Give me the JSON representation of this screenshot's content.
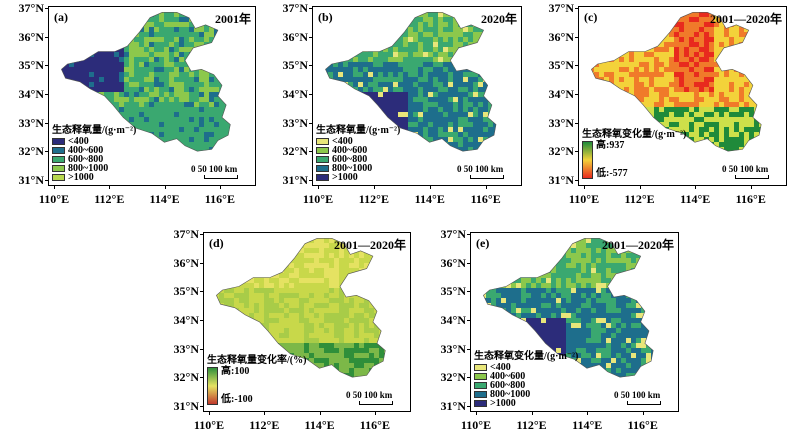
{
  "lat_labels": [
    "37°N",
    "36°N",
    "35°N",
    "34°N",
    "33°N",
    "32°N",
    "31°N"
  ],
  "lon_labels": [
    "110°E",
    "112°E",
    "114°E",
    "116°E"
  ],
  "scale_text": "0 50 100 km",
  "panels": {
    "a": {
      "tag": "(a)",
      "title": "2001年",
      "legend_title": "生态释氧量/(g·m⁻²)",
      "legend_items": [
        "<400",
        "400~600",
        "600~800",
        "800~1000",
        ">1000"
      ]
    },
    "b": {
      "tag": "(b)",
      "title": "2020年",
      "legend_title": "生态释氧量/(g·m⁻²)",
      "legend_items": [
        "<400",
        "400~600",
        "600~800",
        "800~1000",
        ">1000"
      ]
    },
    "c": {
      "tag": "(c)",
      "title": "2001—2020年",
      "legend_title": "生态释氧变化量/(g·m⁻²)",
      "ramp_high": "高:937",
      "ramp_low": "低:-577"
    },
    "d": {
      "tag": "(d)",
      "title": "2001—2020年",
      "legend_title": "生态释氧量变化率/(%)",
      "ramp_high": "高:100",
      "ramp_low": "低:-100"
    },
    "e": {
      "tag": "(e)",
      "title": "2001—2020年",
      "legend_title": "生态释氧变化量/(g·m⁻²)",
      "legend_items": [
        "<400",
        "400~600",
        "600~800",
        "800~1000",
        ">1000"
      ]
    }
  },
  "colors": {
    "class_lt400": "#e8e67a",
    "class_400_600": "#8cc84c",
    "class_600_800": "#3aa870",
    "class_800_1000": "#1e6e8c",
    "class_gt1000": "#2c2c7a",
    "change_high": "#1f8a3a",
    "change_mid": "#f3d23a",
    "change_low": "#e82a1e"
  }
}
